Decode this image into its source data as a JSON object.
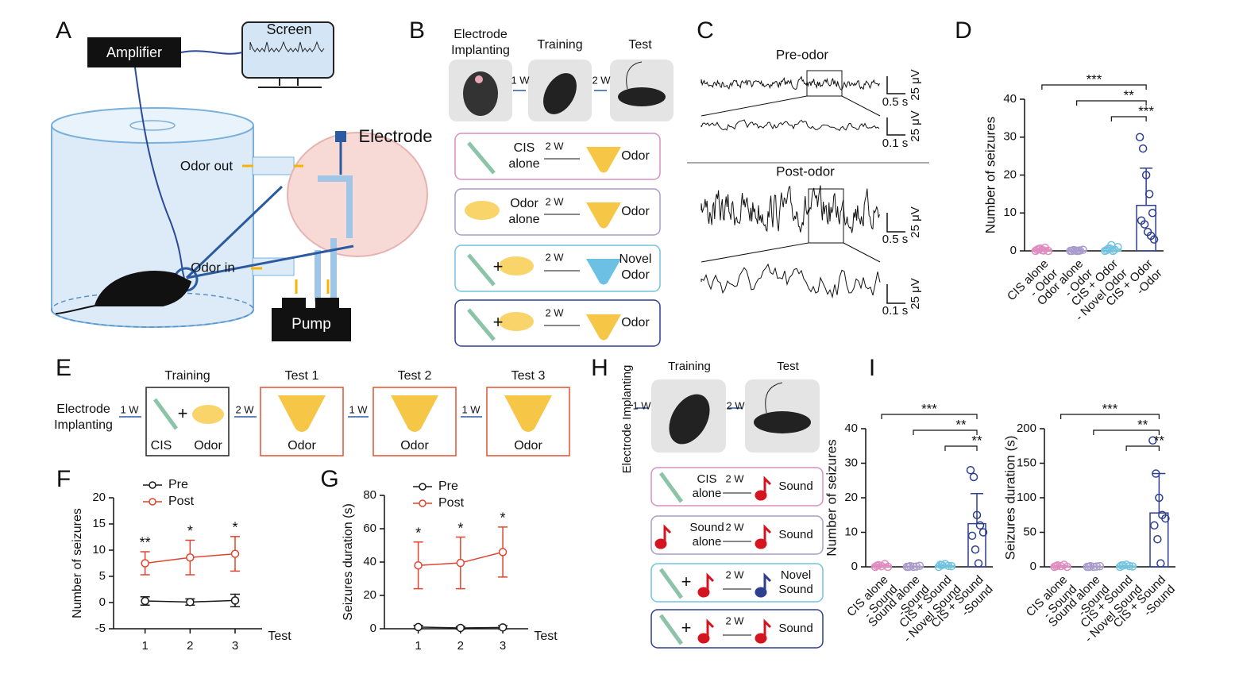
{
  "panels": {
    "A": {
      "label": "A",
      "amplifier": "Amplifier",
      "screen": "Screen",
      "electrode": "Electrode",
      "odor_out": "Odor out",
      "odor_in": "Odor in",
      "pump": "Pump"
    },
    "B": {
      "label": "B",
      "steps": [
        [
          "Electrode",
          "Implanting"
        ],
        [
          "Training"
        ],
        [
          "Test"
        ]
      ],
      "intervals": [
        "1 W",
        "2 W"
      ],
      "groups": [
        {
          "left": [
            "CIS",
            "alone"
          ],
          "interval": "2 W",
          "right": [
            "Odor"
          ]
        },
        {
          "left": [
            "Odor",
            "alone"
          ],
          "interval": "2 W",
          "right": [
            "Odor"
          ]
        },
        {
          "left": [
            "+"
          ],
          "interval": "2 W",
          "right": [
            "Novel",
            "Odor"
          ]
        },
        {
          "left": [
            "+"
          ],
          "interval": "2 W",
          "right": [
            "Odor"
          ]
        }
      ]
    },
    "C": {
      "label": "C",
      "pre": "Pre-odor",
      "post": "Post-odor",
      "scales": [
        {
          "time": "0.5 s",
          "amp": "25 μV"
        },
        {
          "time": "0.1 s",
          "amp": "25 μV"
        },
        {
          "time": "0.5 s",
          "amp": "25 μV"
        },
        {
          "time": "0.1 s",
          "amp": "25 μV"
        }
      ]
    },
    "E": {
      "label": "E",
      "start": [
        "Electrode",
        "Implanting"
      ],
      "intervals": [
        "1 W",
        "2 W",
        "1 W",
        "1 W"
      ],
      "training": {
        "title": "Training",
        "plus": "+",
        "items": [
          "CIS",
          "Odor"
        ]
      },
      "tests": [
        {
          "title": "Test 1",
          "item": "Odor"
        },
        {
          "title": "Test 2",
          "item": "Odor"
        },
        {
          "title": "Test 3",
          "item": "Odor"
        }
      ]
    },
    "H": {
      "label": "H",
      "start": "Electrode Implanting",
      "steps": [
        "Training",
        "Test"
      ],
      "intervals": [
        "1 W",
        "2 W"
      ],
      "groups": [
        {
          "left": [
            "CIS",
            "alone"
          ],
          "interval": "2 W",
          "right": [
            "Sound"
          ]
        },
        {
          "left": [
            "Sound",
            "alone"
          ],
          "interval": "2 W",
          "right": [
            "Sound"
          ]
        },
        {
          "left": [
            "+"
          ],
          "interval": "2 W",
          "right": [
            "Novel",
            "Sound"
          ]
        },
        {
          "left": [
            "+"
          ],
          "interval": "2 W",
          "right": [
            "Sound"
          ]
        }
      ]
    }
  },
  "chart_data": [
    {
      "type": "dotbar",
      "panel": "D",
      "ylabel": "Number of seizures",
      "categories": [
        [
          "CIS alone",
          "- Odor"
        ],
        [
          "Odor alone",
          "- Odor"
        ],
        [
          "CIS + Odor",
          "- Novel Odor"
        ],
        [
          "CIS + Odor",
          "-Odor"
        ]
      ],
      "colors": [
        "#e08cc0",
        "#a99bcc",
        "#72c3e0",
        "#2e3f8f"
      ],
      "values": [
        0.3,
        0.1,
        0.5,
        12
      ],
      "errors": [
        0.3,
        0.1,
        0.5,
        9.8
      ],
      "points": [
        [
          0,
          0.5,
          0.2,
          0.8,
          0,
          0.3,
          0.6,
          0.1
        ],
        [
          0,
          0.2,
          0,
          0.1,
          0.3,
          0,
          0.1,
          0
        ],
        [
          0,
          0.5,
          1.5,
          0.3,
          1,
          0.2,
          0.6,
          0
        ],
        [
          30,
          27,
          20,
          15,
          10,
          8,
          7,
          5,
          4,
          3
        ]
      ],
      "ylim": [
        0,
        40
      ],
      "yticks": [
        0,
        10,
        20,
        30,
        40
      ],
      "comparisons": [
        {
          "from": 0,
          "to": 3,
          "label": "***"
        },
        {
          "from": 1,
          "to": 3,
          "label": "**"
        },
        {
          "from": 2,
          "to": 3,
          "label": "***"
        }
      ]
    },
    {
      "type": "line",
      "panel": "F",
      "ylabel": "Number of seizures",
      "xlabel": "Test",
      "x": [
        1,
        2,
        3
      ],
      "xlim": [
        0.3,
        3.6
      ],
      "xticks": [
        1,
        2,
        3
      ],
      "ylim": [
        -5,
        20
      ],
      "yticks": [
        -5,
        0,
        5,
        10,
        15,
        20
      ],
      "series": [
        {
          "name": "Pre",
          "color": "#1a1a1a",
          "values": [
            0.3,
            0.1,
            0.4
          ],
          "errors": [
            0.8,
            0.6,
            1.2
          ]
        },
        {
          "name": "Post",
          "color": "#e0452f",
          "values": [
            7.5,
            8.6,
            9.3
          ],
          "errors": [
            2.2,
            3.3,
            3.3
          ],
          "annotations": [
            "**",
            "*",
            "*"
          ]
        }
      ]
    },
    {
      "type": "line",
      "panel": "G",
      "ylabel": "Seizures duration (s)",
      "xlabel": "Test",
      "x": [
        1,
        2,
        3
      ],
      "xlim": [
        0.2,
        3.6
      ],
      "xticks": [
        1,
        2,
        3
      ],
      "ylim": [
        0,
        80
      ],
      "yticks": [
        0,
        20,
        40,
        60,
        80
      ],
      "series": [
        {
          "name": "Pre",
          "color": "#1a1a1a",
          "values": [
            1,
            0.5,
            0.8
          ],
          "errors": [
            1,
            0.8,
            1
          ]
        },
        {
          "name": "Post",
          "color": "#e0452f",
          "values": [
            38,
            39.5,
            46
          ],
          "errors": [
            14,
            15.5,
            15
          ],
          "annotations": [
            "*",
            "*",
            "*"
          ]
        }
      ]
    },
    {
      "type": "dotbar",
      "panel": "I",
      "ylabel": "Number of seizures",
      "categories": [
        [
          "CIS alone",
          "- Sound"
        ],
        [
          "Sound alone",
          "-Sound"
        ],
        [
          "CIS + Sound",
          "- Novel Sound"
        ],
        [
          "CIS + Sound",
          "-Sound"
        ]
      ],
      "colors": [
        "#e08cc0",
        "#a99bcc",
        "#72c3e0",
        "#2e3f8f"
      ],
      "values": [
        0.3,
        0.1,
        0.3,
        12.5
      ],
      "errors": [
        0.3,
        0.1,
        0.3,
        8.7
      ],
      "points": [
        [
          0,
          0.5,
          0.2,
          0.8,
          0,
          0.3
        ],
        [
          0,
          0.2,
          0,
          0.1,
          0.3,
          0
        ],
        [
          0,
          0.5,
          0.8,
          0.3,
          0.2,
          0.6
        ],
        [
          28,
          26,
          15,
          12,
          10,
          9,
          5,
          1
        ]
      ],
      "ylim": [
        0,
        40
      ],
      "yticks": [
        0,
        10,
        20,
        30,
        40
      ],
      "comparisons": [
        {
          "from": 0,
          "to": 3,
          "label": "***"
        },
        {
          "from": 1,
          "to": 3,
          "label": "**"
        },
        {
          "from": 2,
          "to": 3,
          "label": "**"
        }
      ]
    },
    {
      "type": "dotbar",
      "ylabel": "Seizures duration (s)",
      "categories": [
        [
          "CIS alone",
          "- Sound"
        ],
        [
          "Sound alone",
          "-Sound"
        ],
        [
          "CIS + Sound",
          "- Novel Sound"
        ],
        [
          "CIS + Sound",
          "-Sound"
        ]
      ],
      "colors": [
        "#e08cc0",
        "#a99bcc",
        "#72c3e0",
        "#2e3f8f"
      ],
      "values": [
        1,
        0.5,
        1,
        78
      ],
      "errors": [
        1,
        0.5,
        1,
        57
      ],
      "points": [
        [
          0,
          2,
          1,
          3,
          0,
          1
        ],
        [
          0,
          1,
          0,
          0.5,
          1,
          0
        ],
        [
          0,
          2,
          3,
          1,
          0.5,
          2
        ],
        [
          183,
          135,
          100,
          75,
          70,
          60,
          40,
          5
        ]
      ],
      "ylim": [
        0,
        200
      ],
      "yticks": [
        0,
        50,
        100,
        150,
        200
      ],
      "comparisons": [
        {
          "from": 0,
          "to": 3,
          "label": "***"
        },
        {
          "from": 1,
          "to": 3,
          "label": "**"
        },
        {
          "from": 2,
          "to": 3,
          "label": "**"
        }
      ]
    }
  ]
}
